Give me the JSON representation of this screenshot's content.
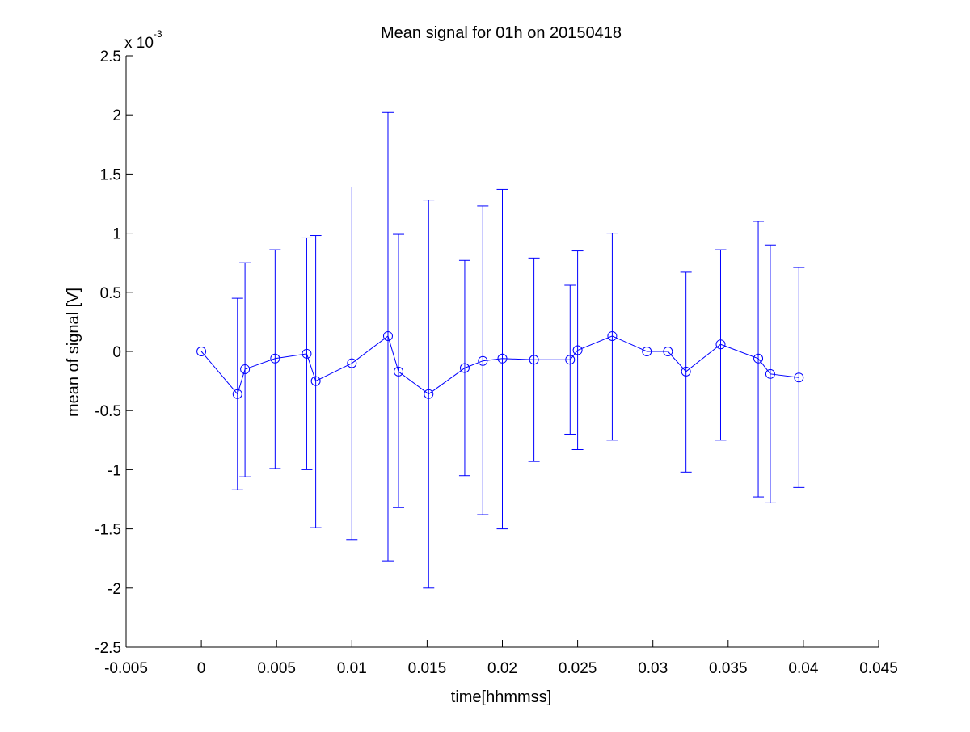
{
  "chart_data": {
    "type": "scatter",
    "title": "Mean signal for 01h on 20150418",
    "xlabel": "time[hhmmss]",
    "ylabel": "mean of signal [V]",
    "y_exponent_label": "x 10",
    "y_exponent_power": "-3",
    "xlim": [
      -0.005,
      0.045
    ],
    "ylim": [
      -2.5,
      2.5
    ],
    "y_scale_note": "values in units of 1e-3 V",
    "x_ticks": [
      "-0.005",
      "0",
      "0.005",
      "0.01",
      "0.015",
      "0.02",
      "0.025",
      "0.03",
      "0.035",
      "0.04",
      "0.045"
    ],
    "y_ticks": [
      "-2.5",
      "-2",
      "-1.5",
      "-1",
      "-0.5",
      "0",
      "0.5",
      "1",
      "1.5",
      "2",
      "2.5"
    ],
    "grid": false,
    "series_color": "#0000ff",
    "marker": "circle",
    "series": [
      {
        "points": [
          {
            "x": 0.0,
            "y": 0.0,
            "lower": 0.0,
            "upper": 0.0
          },
          {
            "x": 0.0024,
            "y": -0.36,
            "lower": -1.17,
            "upper": 0.45
          },
          {
            "x": 0.0029,
            "y": -0.15,
            "lower": -1.06,
            "upper": 0.75
          },
          {
            "x": 0.0049,
            "y": -0.06,
            "lower": -0.99,
            "upper": 0.86
          },
          {
            "x": 0.007,
            "y": -0.02,
            "lower": -1.0,
            "upper": 0.96
          },
          {
            "x": 0.0076,
            "y": -0.25,
            "lower": -1.49,
            "upper": 0.98
          },
          {
            "x": 0.01,
            "y": -0.1,
            "lower": -1.59,
            "upper": 1.39
          },
          {
            "x": 0.0124,
            "y": 0.13,
            "lower": -1.77,
            "upper": 2.02
          },
          {
            "x": 0.0131,
            "y": -0.17,
            "lower": -1.32,
            "upper": 0.99
          },
          {
            "x": 0.0151,
            "y": -0.36,
            "lower": -2.0,
            "upper": 1.28
          },
          {
            "x": 0.0175,
            "y": -0.14,
            "lower": -1.05,
            "upper": 0.77
          },
          {
            "x": 0.0187,
            "y": -0.08,
            "lower": -1.38,
            "upper": 1.23
          },
          {
            "x": 0.02,
            "y": -0.06,
            "lower": -1.5,
            "upper": 1.37
          },
          {
            "x": 0.0221,
            "y": -0.07,
            "lower": -0.93,
            "upper": 0.79
          },
          {
            "x": 0.0245,
            "y": -0.07,
            "lower": -0.7,
            "upper": 0.56
          },
          {
            "x": 0.025,
            "y": 0.01,
            "lower": -0.83,
            "upper": 0.85
          },
          {
            "x": 0.0273,
            "y": 0.13,
            "lower": -0.75,
            "upper": 1.0
          },
          {
            "x": 0.0296,
            "y": 0.0,
            "lower": 0.0,
            "upper": 0.0
          },
          {
            "x": 0.031,
            "y": 0.0,
            "lower": 0.0,
            "upper": 0.0
          },
          {
            "x": 0.0322,
            "y": -0.17,
            "lower": -1.02,
            "upper": 0.67
          },
          {
            "x": 0.0345,
            "y": 0.06,
            "lower": -0.75,
            "upper": 0.86
          },
          {
            "x": 0.037,
            "y": -0.06,
            "lower": -1.23,
            "upper": 1.1
          },
          {
            "x": 0.0378,
            "y": -0.19,
            "lower": -1.28,
            "upper": 0.9
          },
          {
            "x": 0.0397,
            "y": -0.22,
            "lower": -1.15,
            "upper": 0.71
          }
        ]
      }
    ]
  }
}
